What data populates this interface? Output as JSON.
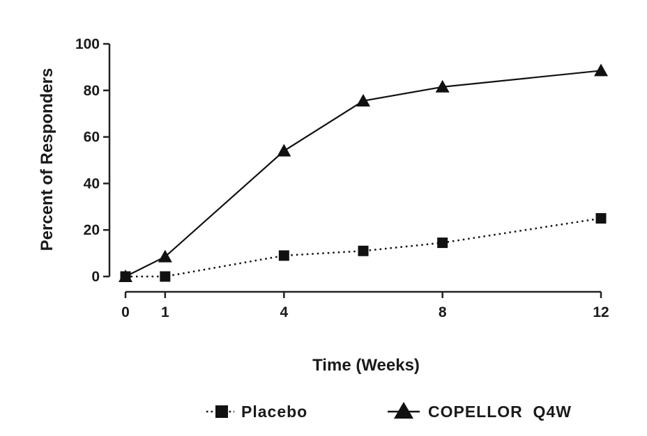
{
  "chart_data": {
    "type": "line",
    "title": "",
    "xlabel": "Time (Weeks)",
    "ylabel": "Percent of Responders",
    "xlim": [
      0,
      12
    ],
    "ylim": [
      0,
      100
    ],
    "xticks": [
      0,
      1,
      4,
      8,
      12
    ],
    "yticks": [
      0,
      20,
      40,
      60,
      80,
      100
    ],
    "grid": false,
    "legend_position": "bottom",
    "series": [
      {
        "name": "Placebo",
        "marker": "square",
        "line_style": "dotted",
        "color": "#111111",
        "x": [
          0,
          1,
          4,
          6,
          8,
          12
        ],
        "y": [
          0,
          0,
          9,
          11,
          14.5,
          25
        ]
      },
      {
        "name": "COPELLOR  Q4W",
        "marker": "triangle",
        "line_style": "solid",
        "color": "#111111",
        "x": [
          0,
          1,
          4,
          6,
          8,
          12
        ],
        "y": [
          0,
          8.5,
          54,
          75.5,
          81.5,
          88.5
        ]
      }
    ]
  }
}
